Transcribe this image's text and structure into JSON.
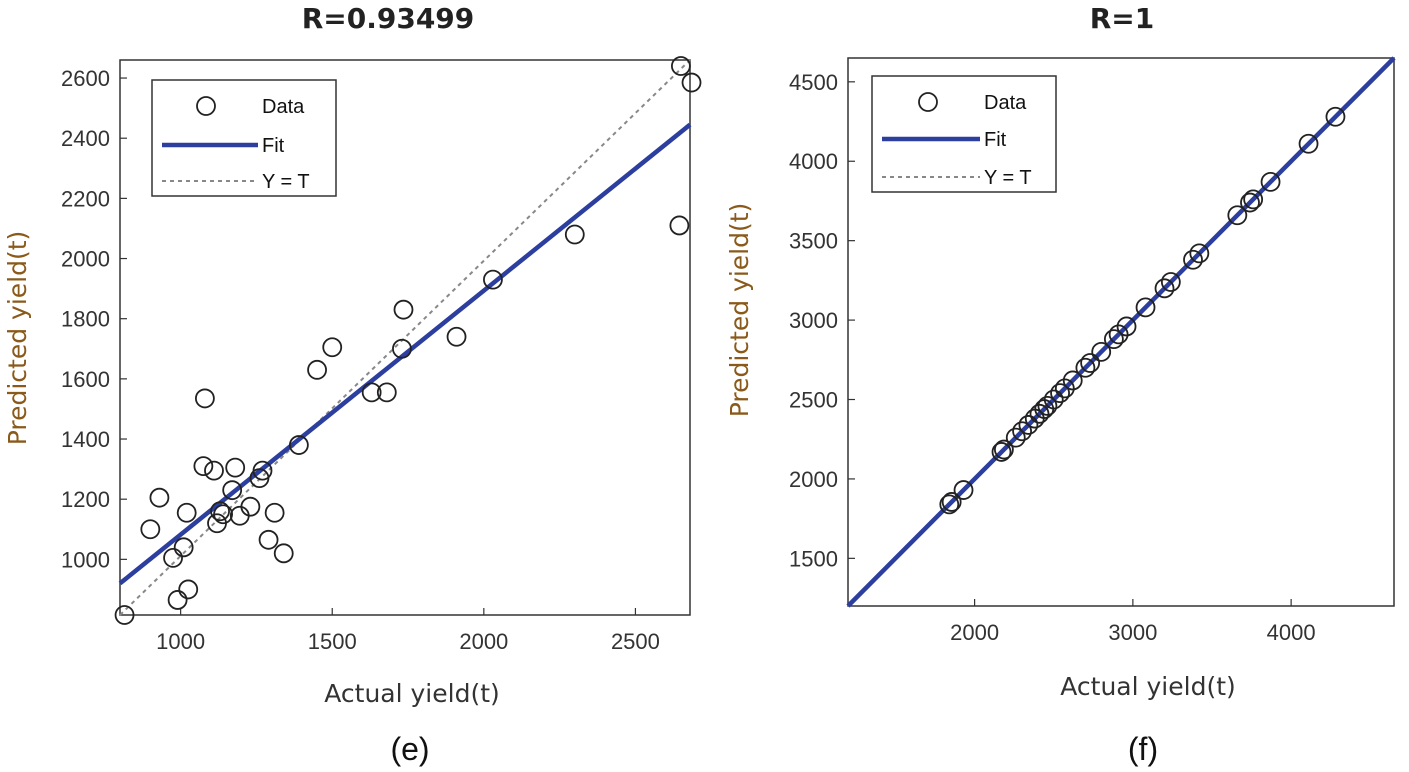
{
  "chart_data": [
    {
      "type": "scatter",
      "title": "R=0.93499",
      "caption": "(e)",
      "xlabel": "Actual yield(t)",
      "ylabel": "Predicted yield(t)",
      "xlim": [
        800,
        2680
      ],
      "ylim": [
        815,
        2660
      ],
      "xticks": [
        1000,
        1500,
        2000,
        2500
      ],
      "yticks": [
        1000,
        1200,
        1400,
        1600,
        1800,
        2000,
        2200,
        2400,
        2600
      ],
      "legend": [
        "Data",
        "Fit",
        "Y = T"
      ],
      "legend_position": "top-left",
      "fit": [
        [
          800,
          920
        ],
        [
          2680,
          2445
        ]
      ],
      "identity": [
        [
          800,
          800
        ],
        [
          2680,
          2680
        ]
      ],
      "points": [
        [
          815,
          815
        ],
        [
          900,
          1100
        ],
        [
          930,
          1205
        ],
        [
          975,
          1005
        ],
        [
          990,
          865
        ],
        [
          1010,
          1040
        ],
        [
          1020,
          1155
        ],
        [
          1025,
          900
        ],
        [
          1075,
          1310
        ],
        [
          1080,
          1535
        ],
        [
          1110,
          1295
        ],
        [
          1120,
          1120
        ],
        [
          1130,
          1160
        ],
        [
          1140,
          1150
        ],
        [
          1170,
          1230
        ],
        [
          1180,
          1305
        ],
        [
          1195,
          1145
        ],
        [
          1230,
          1175
        ],
        [
          1260,
          1270
        ],
        [
          1270,
          1295
        ],
        [
          1290,
          1065
        ],
        [
          1310,
          1155
        ],
        [
          1340,
          1020
        ],
        [
          1390,
          1380
        ],
        [
          1450,
          1630
        ],
        [
          1500,
          1705
        ],
        [
          1630,
          1555
        ],
        [
          1680,
          1555
        ],
        [
          1730,
          1700
        ],
        [
          1735,
          1830
        ],
        [
          1910,
          1740
        ],
        [
          2030,
          1930
        ],
        [
          2300,
          2080
        ],
        [
          2645,
          2110
        ],
        [
          2650,
          2640
        ],
        [
          2685,
          2585
        ]
      ]
    },
    {
      "type": "scatter",
      "title": "R=1",
      "caption": "(f)",
      "xlabel": "Actual yield(t)",
      "ylabel": "Predicted yield(t)",
      "xlim": [
        1200,
        4650
      ],
      "ylim": [
        1200,
        4650
      ],
      "xticks": [
        2000,
        3000,
        4000
      ],
      "yticks": [
        1500,
        2000,
        2500,
        3000,
        3500,
        4000,
        4500
      ],
      "legend": [
        "Data",
        "Fit",
        "Y = T"
      ],
      "legend_position": "top-left",
      "fit": [
        [
          1200,
          1200
        ],
        [
          4650,
          4650
        ]
      ],
      "identity": [
        [
          1200,
          1200
        ],
        [
          4650,
          4650
        ]
      ],
      "points": [
        [
          1840,
          1840
        ],
        [
          1855,
          1855
        ],
        [
          1930,
          1930
        ],
        [
          2170,
          2170
        ],
        [
          2185,
          2185
        ],
        [
          2260,
          2260
        ],
        [
          2300,
          2300
        ],
        [
          2340,
          2340
        ],
        [
          2380,
          2380
        ],
        [
          2410,
          2410
        ],
        [
          2440,
          2440
        ],
        [
          2460,
          2460
        ],
        [
          2500,
          2500
        ],
        [
          2540,
          2540
        ],
        [
          2570,
          2570
        ],
        [
          2620,
          2620
        ],
        [
          2700,
          2700
        ],
        [
          2730,
          2730
        ],
        [
          2800,
          2800
        ],
        [
          2880,
          2880
        ],
        [
          2910,
          2910
        ],
        [
          2960,
          2960
        ],
        [
          3080,
          3080
        ],
        [
          3200,
          3200
        ],
        [
          3240,
          3240
        ],
        [
          3380,
          3380
        ],
        [
          3420,
          3420
        ],
        [
          3660,
          3660
        ],
        [
          3740,
          3740
        ],
        [
          3760,
          3760
        ],
        [
          3870,
          3870
        ],
        [
          4110,
          4110
        ],
        [
          4280,
          4280
        ]
      ]
    }
  ]
}
